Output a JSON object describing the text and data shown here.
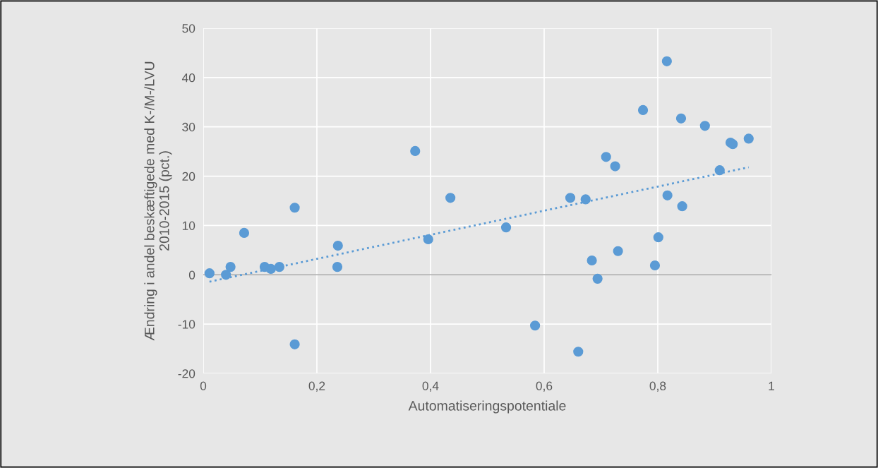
{
  "chart_data": {
    "type": "scatter",
    "xlabel": "Automatiseringspotentiale",
    "ylabel": "Ændring i andel beskæftigede med K-/M-/LVU\n2010-2015 (pct.)",
    "xlim": [
      0,
      1
    ],
    "ylim": [
      -20,
      50
    ],
    "xticks": [
      0,
      {
        "value": 0.2,
        "label": "0,2"
      },
      {
        "value": 0.4,
        "label": "0,4"
      },
      {
        "value": 0.6,
        "label": "0,6"
      },
      {
        "value": 0.8,
        "label": "0,8"
      },
      1
    ],
    "yticks": [
      -20,
      -10,
      0,
      10,
      20,
      30,
      40,
      50
    ],
    "grid": true,
    "ref_lines": [
      {
        "axis": "y",
        "value": 0,
        "label": null,
        "color": "#a6a6a6"
      }
    ],
    "series": [
      {
        "color": "#5b9bd5",
        "marker": "circle",
        "x": [
          0.011,
          0.04,
          0.048,
          0.072,
          0.108,
          0.119,
          0.134,
          0.161,
          0.161,
          0.236,
          0.237,
          0.373,
          0.396,
          0.435,
          0.533,
          0.584,
          0.646,
          0.66,
          0.673,
          0.684,
          0.694,
          0.709,
          0.725,
          0.73,
          0.774,
          0.795,
          0.801,
          0.816,
          0.817,
          0.841,
          0.843,
          0.883,
          0.909,
          0.928,
          0.932,
          0.96
        ],
        "values": [
          0.3,
          0.0,
          1.6,
          8.5,
          1.6,
          1.2,
          1.6,
          13.6,
          -14.1,
          1.6,
          5.9,
          25.1,
          7.2,
          15.6,
          9.6,
          -10.3,
          15.6,
          -15.6,
          15.3,
          2.9,
          -0.8,
          23.9,
          22.0,
          4.8,
          33.4,
          1.9,
          7.6,
          43.3,
          16.1,
          31.7,
          13.9,
          30.2,
          21.2,
          26.8,
          26.5,
          27.6
        ]
      },
      {
        "type": "line",
        "color": "#5b9bd5",
        "line_style": "dotted",
        "marker": "none",
        "x": [
          0.011,
          0.96
        ],
        "values": [
          -1.4,
          21.8
        ]
      }
    ]
  }
}
